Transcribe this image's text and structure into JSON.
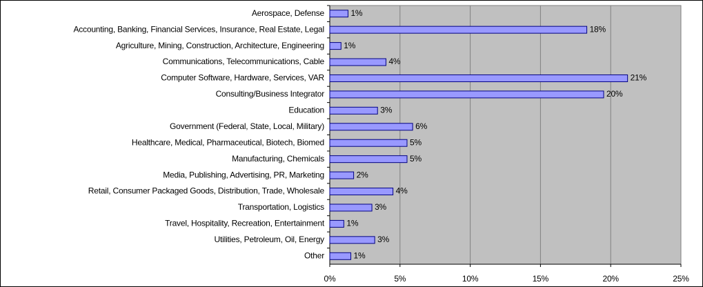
{
  "chart_data": {
    "type": "bar",
    "orientation": "horizontal",
    "categories": [
      "Aerospace, Defense",
      "Accounting, Banking, Financial Services, Insurance, Real Estate, Legal",
      "Agriculture, Mining, Construction, Architecture, Engineering",
      "Communications, Telecommunications, Cable",
      "Computer Software, Hardware, Services, VAR",
      "Consulting/Business Integrator",
      "Education",
      "Government (Federal, State, Local, Military)",
      "Healthcare, Medical, Pharmaceutical, Biotech, Biomed",
      "Manufacturing, Chemicals",
      "Media, Publishing, Advertising, PR, Marketing",
      "Retail, Consumer Packaged Goods, Distribution, Trade, Wholesale",
      "Transportation, Logistics",
      "Travel, Hospitality, Recreation, Entertainment",
      "Utilities, Petroleum, Oil, Energy",
      "Other"
    ],
    "values": [
      1.3,
      18.3,
      0.8,
      4.0,
      21.2,
      19.5,
      3.4,
      5.9,
      5.5,
      5.5,
      1.7,
      4.5,
      3.0,
      1.0,
      3.2,
      1.5
    ],
    "value_labels": [
      "1%",
      "18%",
      "1%",
      "4%",
      "21%",
      "20%",
      "3%",
      "6%",
      "5%",
      "5%",
      "2%",
      "4%",
      "3%",
      "1%",
      "3%",
      "1%"
    ],
    "color": "#9999ff",
    "xlim": [
      0,
      25
    ],
    "xticks": [
      {
        "value": 0,
        "label": "0%"
      },
      {
        "value": 5,
        "label": "5%"
      },
      {
        "value": 10,
        "label": "10%"
      },
      {
        "value": 15,
        "label": "15%"
      },
      {
        "value": 20,
        "label": "20%"
      },
      {
        "value": 25,
        "label": "25%"
      }
    ],
    "grid": true
  }
}
